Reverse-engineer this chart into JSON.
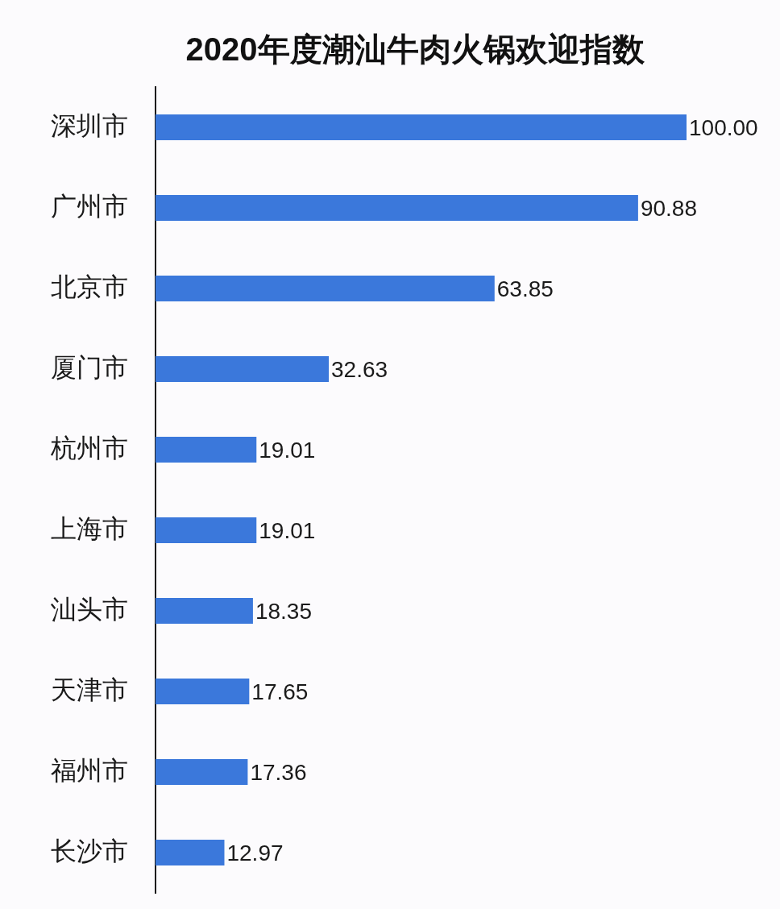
{
  "chart_data": {
    "type": "bar",
    "orientation": "horizontal",
    "title": "2020年度潮汕牛肉火锅欢迎指数",
    "categories": [
      "深圳市",
      "广州市",
      "北京市",
      "厦门市",
      "杭州市",
      "上海市",
      "汕头市",
      "天津市",
      "福州市",
      "长沙市"
    ],
    "values": [
      100.0,
      90.88,
      63.85,
      32.63,
      19.01,
      19.01,
      18.35,
      17.65,
      17.36,
      12.97
    ],
    "value_labels": [
      "100.00",
      "90.88",
      "63.85",
      "32.63",
      "19.01",
      "19.01",
      "18.35",
      "17.65",
      "17.36",
      "12.97"
    ],
    "color": "#3b78db"
  }
}
